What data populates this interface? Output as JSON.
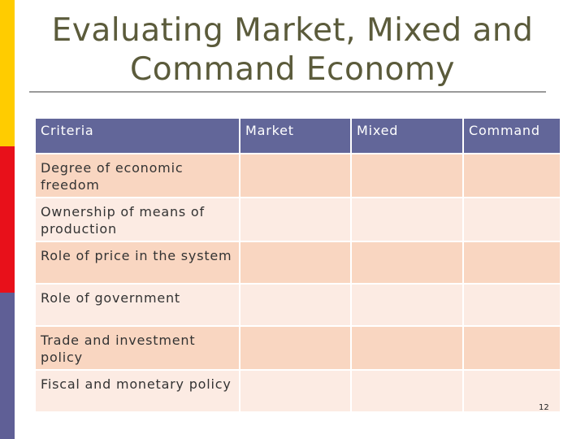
{
  "slide": {
    "title_line1": "Evaluating Market, Mixed and",
    "title_line2": "Command Economy",
    "page_number": "12"
  },
  "colors": {
    "bar_top": "#ffcc00",
    "bar_middle": "#e8101a",
    "bar_bottom": "#5f5f96",
    "header_bg": "#626699",
    "row_dark": "#f9d6c1",
    "row_light": "#fcebe3"
  },
  "table": {
    "headers": [
      "Criteria",
      "Market",
      "Mixed",
      "Command"
    ],
    "rows": [
      [
        "Degree of economic freedom",
        "",
        "",
        ""
      ],
      [
        "Ownership of means of production",
        "",
        "",
        ""
      ],
      [
        "Role of price in the system",
        "",
        "",
        ""
      ],
      [
        "Role of government",
        "",
        "",
        ""
      ],
      [
        "Trade and investment policy",
        "",
        "",
        ""
      ],
      [
        "Fiscal and monetary policy",
        "",
        "",
        ""
      ]
    ]
  }
}
